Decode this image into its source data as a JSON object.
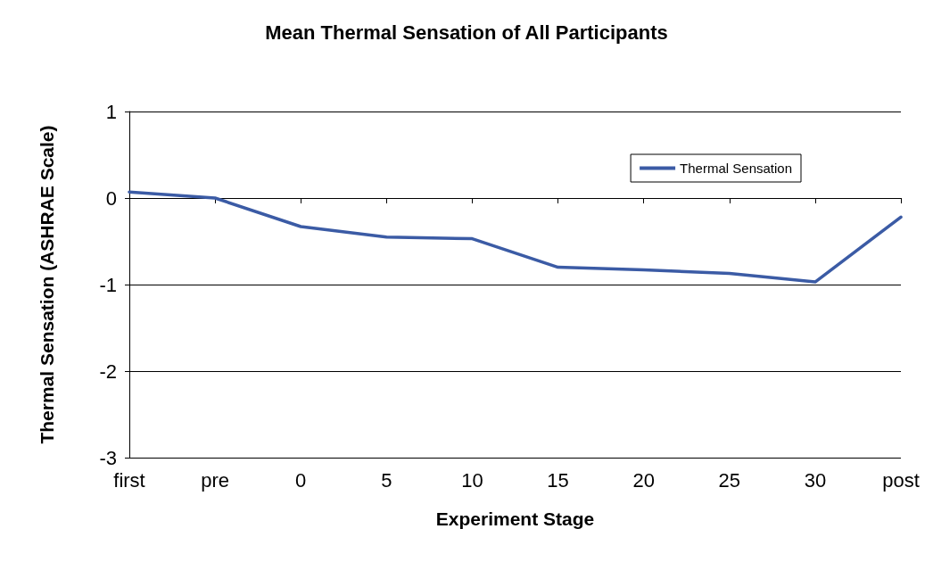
{
  "chart_data": {
    "type": "line",
    "title": "Mean Thermal Sensation of All Participants",
    "xlabel": "Experiment Stage",
    "ylabel": "Thermal Sensation (ASHRAE Scale)",
    "categories": [
      "first",
      "pre",
      "0",
      "5",
      "10",
      "15",
      "20",
      "25",
      "30",
      "post"
    ],
    "series": [
      {
        "name": "Thermal Sensation",
        "color": "#3b5ba5",
        "values": [
          0.07,
          0.0,
          -0.33,
          -0.45,
          -0.47,
          -0.8,
          -0.83,
          -0.87,
          -0.97,
          -0.22
        ]
      }
    ],
    "ylim": [
      -3,
      1
    ],
    "yticks": [
      -3,
      -2,
      -1,
      0,
      1
    ],
    "grid": "y",
    "legend": "top right",
    "marker": "none",
    "line_style": "solid"
  }
}
